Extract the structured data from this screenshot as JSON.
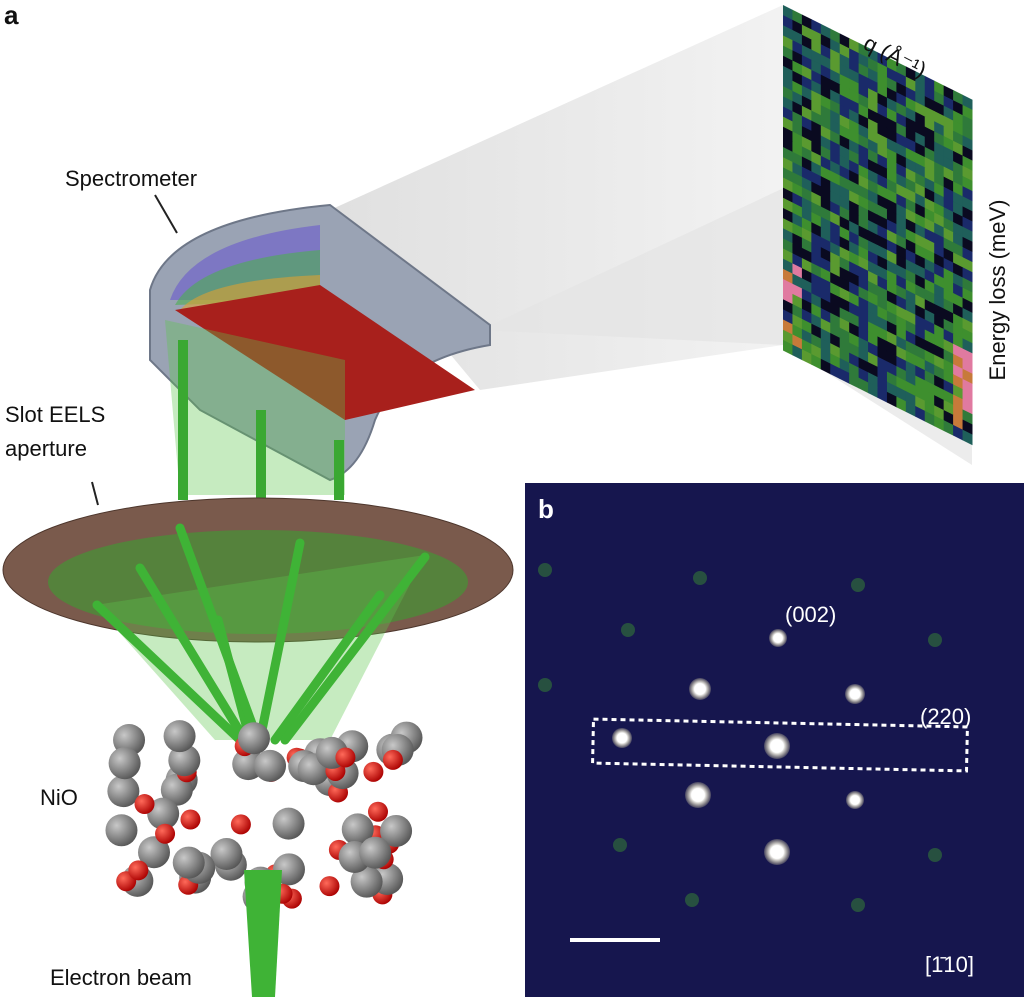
{
  "panel_a": {
    "label": "a",
    "spectrometer": "Spectrometer",
    "aperture": [
      "Slot EELS",
      "aperture"
    ],
    "sample": "NiO",
    "beam": "Electron beam",
    "detector": {
      "x_axis": "q (Å⁻¹)",
      "y_axis": "Energy loss (meV)"
    }
  },
  "panel_b": {
    "label": "b",
    "spots": [
      "(002)",
      "(220)"
    ],
    "zone_axis": "[1̄10]"
  }
}
